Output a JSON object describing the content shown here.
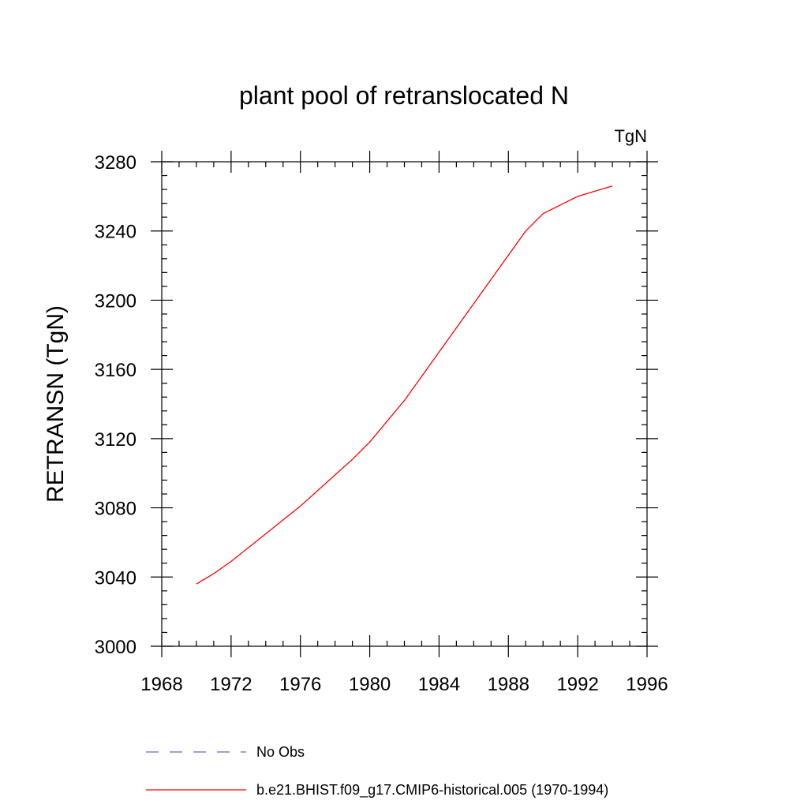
{
  "chart_data": {
    "type": "line",
    "title": "plant pool of retranslocated N",
    "units_label": "TgN",
    "ylabel": "RETRANSN  (TgN)",
    "xlabel": "",
    "xlim": [
      1968,
      1996
    ],
    "ylim": [
      3000,
      3280
    ],
    "x_ticks": [
      1968,
      1972,
      1976,
      1980,
      1984,
      1988,
      1992,
      1996
    ],
    "x_tick_labels": [
      "1968",
      "1972",
      "1976",
      "1980",
      "1984",
      "1988",
      "1992",
      "1996"
    ],
    "x_minor_step": 1,
    "y_ticks": [
      3000,
      3040,
      3080,
      3120,
      3160,
      3200,
      3240,
      3280
    ],
    "y_tick_labels": [
      "3000",
      "3040",
      "3080",
      "3120",
      "3160",
      "3200",
      "3240",
      "3280"
    ],
    "y_minor_step": 8,
    "grid": false,
    "legend_position": "bottom",
    "series": [
      {
        "name": "No Obs",
        "color": "#6666cc",
        "dash": "dashed",
        "x": [],
        "y": []
      },
      {
        "name": "b.e21.BHIST.f09_g17.CMIP6-historical.005 (1970-1994)",
        "color": "#ff0000",
        "dash": "solid",
        "x": [
          1970,
          1971,
          1972,
          1973,
          1974,
          1975,
          1976,
          1977,
          1978,
          1979,
          1980,
          1981,
          1982,
          1983,
          1984,
          1985,
          1986,
          1987,
          1988,
          1989,
          1990,
          1991,
          1992,
          1993,
          1994
        ],
        "y": [
          3036,
          3042,
          3049,
          3057,
          3065,
          3073,
          3081,
          3090,
          3099,
          3108,
          3118,
          3130,
          3142,
          3156,
          3170,
          3184,
          3198,
          3212,
          3226,
          3240,
          3250,
          3255,
          3260,
          3263,
          3266
        ]
      }
    ]
  }
}
